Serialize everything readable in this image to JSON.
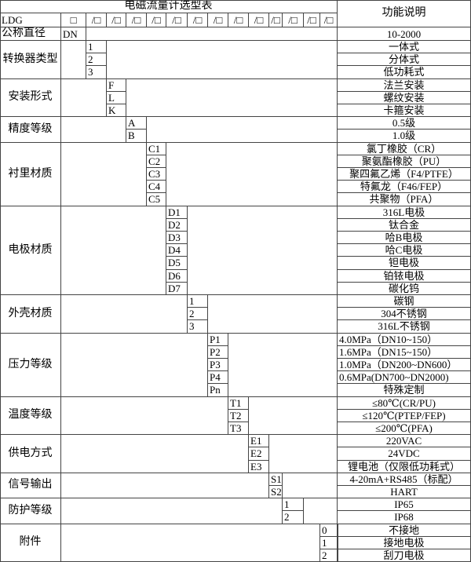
{
  "title": "电磁流量计选型表",
  "function_header": "功能说明",
  "model_row": {
    "prefix": "LDG",
    "first_box": "□",
    "boxes": [
      "/□",
      "/□",
      "/□",
      "/□",
      "/□",
      "/□",
      "/□",
      "/□",
      "/□",
      "/□",
      "/□",
      "/□",
      "/□"
    ]
  },
  "diameter_row": {
    "label": "公称直径",
    "code": "DN",
    "description": "10-2000"
  },
  "groups": [
    {
      "label": "转换器类型",
      "col": 0,
      "options": [
        {
          "code": "1",
          "description": "一体式"
        },
        {
          "code": "2",
          "description": "分体式"
        },
        {
          "code": "3",
          "description": "低功耗式"
        }
      ]
    },
    {
      "label": "安装形式",
      "col": 1,
      "options": [
        {
          "code": "F",
          "description": "法兰安装"
        },
        {
          "code": "L",
          "description": "螺纹安装"
        },
        {
          "code": "K",
          "description": "卡箍安装"
        }
      ]
    },
    {
      "label": "精度等级",
      "col": 2,
      "options": [
        {
          "code": "A",
          "description": "0.5级"
        },
        {
          "code": "B",
          "description": "1.0级"
        }
      ]
    },
    {
      "label": "衬里材质",
      "col": 3,
      "options": [
        {
          "code": "C1",
          "description": "氯丁橡胶（CR）"
        },
        {
          "code": "C2",
          "description": "聚氨酯橡胶（PU）"
        },
        {
          "code": "C3",
          "description": "聚四氟乙烯（F4/PTFE）"
        },
        {
          "code": "C4",
          "description": "特氟龙（F46/FEP）"
        },
        {
          "code": "C5",
          "description": "共聚物（PFA）"
        }
      ]
    },
    {
      "label": "电极材质",
      "col": 4,
      "options": [
        {
          "code": "D1",
          "description": "316L电极"
        },
        {
          "code": "D2",
          "description": "钛合金"
        },
        {
          "code": "D3",
          "description": "哈B电极"
        },
        {
          "code": "D4",
          "description": "哈C电极"
        },
        {
          "code": "D5",
          "description": "钽电极"
        },
        {
          "code": "D6",
          "description": "铂铱电极"
        },
        {
          "code": "D7",
          "description": "碳化钨"
        }
      ]
    },
    {
      "label": "外壳材质",
      "col": 5,
      "options": [
        {
          "code": "1",
          "description": "碳钢"
        },
        {
          "code": "2",
          "description": "304不锈钢"
        },
        {
          "code": "3",
          "description": "316L不锈钢"
        }
      ]
    },
    {
      "label": "压力等级",
      "col": 6,
      "options": [
        {
          "code": "P1",
          "description": "4.0MPa（DN10~150）",
          "left": true
        },
        {
          "code": "P2",
          "description": "1.6MPa（DN15~150）",
          "left": true
        },
        {
          "code": "P3",
          "description": "1.0MPa（DN200~DN600）",
          "left": true
        },
        {
          "code": "P4",
          "description": "0.6MPa(DN700~DN2000)",
          "left": true
        },
        {
          "code": "Pn",
          "description": "特殊定制"
        }
      ]
    },
    {
      "label": "温度等级",
      "col": 7,
      "options": [
        {
          "code": "T1",
          "description": "≤80℃(CR/PU)"
        },
        {
          "code": "T2",
          "description": "≤120℃(PTEP/FEP)"
        },
        {
          "code": "T3",
          "description": "≤200℃(PFA)"
        }
      ]
    },
    {
      "label": "供电方式",
      "col": 8,
      "options": [
        {
          "code": "E1",
          "description": "220VAC"
        },
        {
          "code": "E2",
          "description": "24VDC"
        },
        {
          "code": "E3",
          "description": "锂电池（仅限低功耗式）"
        }
      ]
    },
    {
      "label": "信号输出",
      "col": 9,
      "options": [
        {
          "code": "S1",
          "description": "4-20mA+RS485（标配）"
        },
        {
          "code": "S2",
          "description": "HART"
        }
      ]
    },
    {
      "label": "防护等级",
      "col": 10,
      "options": [
        {
          "code": "1",
          "description": "IP65"
        },
        {
          "code": "2",
          "description": "IP68"
        }
      ]
    },
    {
      "label": "附件",
      "col": 12,
      "options": [
        {
          "code": "0",
          "description": "不接地"
        },
        {
          "code": "1",
          "description": "接地电极"
        },
        {
          "code": "2",
          "description": "刮刀电极"
        }
      ]
    }
  ]
}
